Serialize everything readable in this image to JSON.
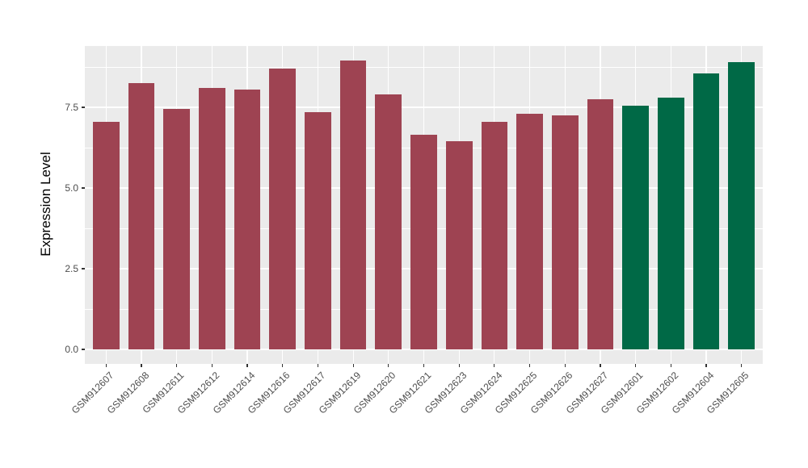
{
  "figure": {
    "background": "#FFFFFF",
    "panel_background": "#EBEBEB",
    "gridline_color": "#FFFFFF",
    "tick_mark_color": "#333333",
    "axis_text_color": "#4D4D4D",
    "axis_title_color": "#000000"
  },
  "chart_data": {
    "type": "bar",
    "title": "",
    "xlabel": "",
    "ylabel": "Expression Level",
    "ylim": [
      0,
      9.4
    ],
    "grid": "on",
    "legend": "none",
    "yticks": [
      {
        "value": 0.0,
        "label": "0.0"
      },
      {
        "value": 2.5,
        "label": "2.5"
      },
      {
        "value": 5.0,
        "label": "5.0"
      },
      {
        "value": 7.5,
        "label": "7.5"
      }
    ],
    "minor_gridlines": [
      1.25,
      3.75,
      6.25,
      8.75
    ],
    "bar_color_red": "#9E4352",
    "bar_color_green": "#006946",
    "categories": [
      "GSM912607",
      "GSM912608",
      "GSM912611",
      "GSM912612",
      "GSM912614",
      "GSM912616",
      "GSM912617",
      "GSM912619",
      "GSM912620",
      "GSM912621",
      "GSM912623",
      "GSM912624",
      "GSM912625",
      "GSM912626",
      "GSM912627",
      "GSM912601",
      "GSM912602",
      "GSM912604",
      "GSM912605"
    ],
    "values": [
      7.05,
      8.25,
      7.45,
      8.1,
      8.05,
      8.7,
      7.35,
      8.95,
      7.9,
      6.65,
      6.45,
      7.05,
      7.3,
      7.25,
      7.75,
      7.55,
      7.8,
      8.55,
      8.9
    ],
    "bar_colors": [
      "#9E4352",
      "#9E4352",
      "#9E4352",
      "#9E4352",
      "#9E4352",
      "#9E4352",
      "#9E4352",
      "#9E4352",
      "#9E4352",
      "#9E4352",
      "#9E4352",
      "#9E4352",
      "#9E4352",
      "#9E4352",
      "#9E4352",
      "#006946",
      "#006946",
      "#006946",
      "#006946"
    ]
  }
}
